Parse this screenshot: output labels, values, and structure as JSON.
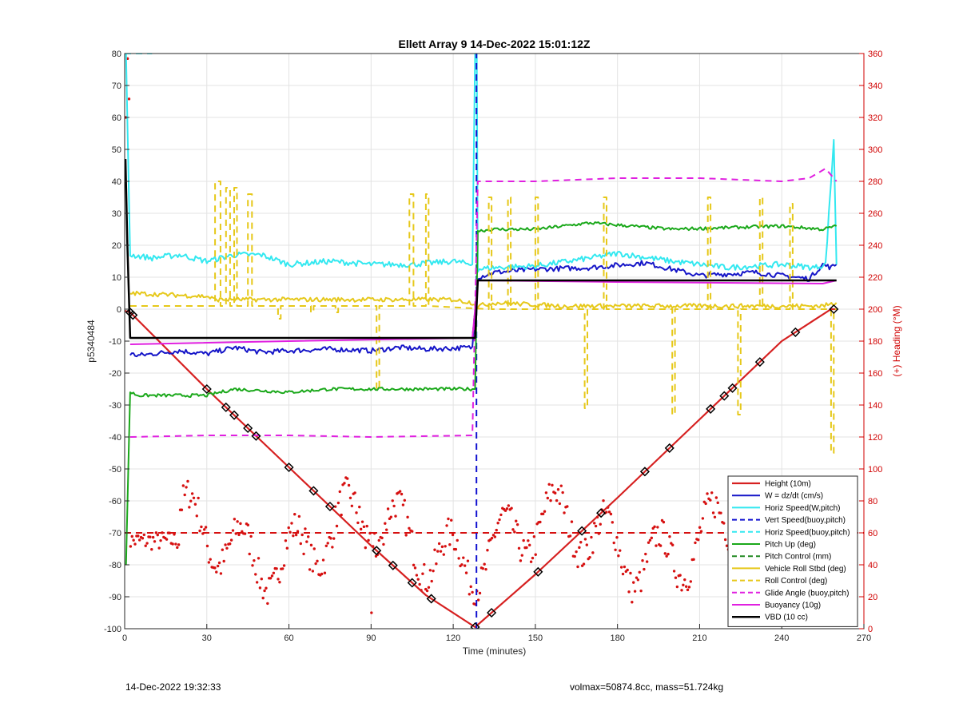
{
  "chart_data": {
    "type": "line",
    "title": "Ellett Array 9 14-Dec-2022 15:01:12Z",
    "xlabel": "Time (minutes)",
    "ylabel": "p5340484",
    "y2label": "(+) Heading (°M)",
    "xlim": [
      0,
      270
    ],
    "ylim": [
      -100,
      80
    ],
    "y2lim": [
      0,
      360
    ],
    "xticks": [
      0,
      30,
      60,
      90,
      120,
      150,
      180,
      210,
      240,
      270
    ],
    "yticks": [
      -100,
      -90,
      -80,
      -70,
      -60,
      -50,
      -40,
      -30,
      -20,
      -10,
      0,
      10,
      20,
      30,
      40,
      50,
      60,
      70,
      80
    ],
    "y2ticks": [
      0,
      20,
      40,
      60,
      80,
      100,
      120,
      140,
      160,
      180,
      200,
      220,
      240,
      260,
      280,
      300,
      320,
      340,
      360
    ],
    "grid": true,
    "legend_position": "bottom-right",
    "series": [
      {
        "name": "Height (10m)",
        "color": "#d62020",
        "style": "solid",
        "width": 2.2,
        "x": [
          0,
          2,
          30,
          60,
          90,
          110,
          128,
          150,
          180,
          210,
          240,
          258,
          260
        ],
        "y": [
          -0.5,
          -1,
          -25,
          -49.5,
          -74,
          -89.5,
          -99.5,
          -83,
          -59,
          -34.5,
          -10,
          0,
          0
        ]
      },
      {
        "name": "W = dz/dt (cm/s)",
        "color": "#1515c8",
        "style": "solid",
        "width": 2,
        "x": [
          2,
          5,
          20,
          30,
          40,
          50,
          60,
          75,
          90,
          100,
          110,
          127,
          129,
          135,
          150,
          170,
          190,
          210,
          230,
          250,
          255,
          258,
          260
        ],
        "y": [
          -14,
          -14.5,
          -13,
          -14,
          -12,
          -13.5,
          -13,
          -12.5,
          -13,
          -12,
          -12.5,
          -12,
          10,
          11.5,
          12.5,
          13,
          14.5,
          10.5,
          11.5,
          9.5,
          14,
          13,
          14
        ]
      },
      {
        "name": "Horiz Speed(W,pitch)",
        "color": "#33e8f0",
        "style": "solid",
        "width": 2,
        "x": [
          0.5,
          2,
          10,
          20,
          30,
          40,
          50,
          60,
          75,
          90,
          105,
          120,
          127,
          128,
          128.6,
          129,
          135,
          150,
          170,
          180,
          200,
          220,
          240,
          252,
          256,
          259,
          260
        ],
        "y": [
          80,
          17,
          16,
          17,
          15,
          17,
          17,
          14,
          15,
          14,
          14,
          15,
          14,
          80,
          80,
          12.5,
          13,
          13.5,
          16,
          17.5,
          15,
          13,
          14,
          13,
          14,
          53,
          14
        ]
      },
      {
        "name": "Vert Speed(buoy,pitch)",
        "color": "#1010d0",
        "style": "dashed",
        "width": 2,
        "x": [
          128.5,
          128.5
        ],
        "y": [
          -100,
          80
        ]
      },
      {
        "name": "Horiz Speed(buoy,pitch)",
        "color": "#33e8f0",
        "style": "dashed",
        "width": 2,
        "x": [
          0,
          10
        ],
        "y": [
          80,
          80
        ]
      },
      {
        "name": "Pitch Up (deg)",
        "color": "#1aa81a",
        "style": "solid",
        "width": 2,
        "x": [
          0.5,
          2,
          5,
          30,
          40,
          60,
          75,
          100,
          127,
          128,
          129,
          135,
          150,
          160,
          170,
          185,
          200,
          220,
          240,
          255,
          260
        ],
        "y": [
          -80,
          -26,
          -27,
          -27,
          -25,
          -26,
          -25,
          -25,
          -25,
          -25,
          24.5,
          25,
          25,
          26,
          27,
          26,
          25,
          25.5,
          26,
          25,
          26
        ]
      },
      {
        "name": "Pitch Control (mm)",
        "color": "#208820",
        "style": "dashed",
        "width": 2,
        "x": [
          2,
          127,
          129,
          260
        ],
        "y": [
          -9,
          -9,
          9,
          9
        ]
      },
      {
        "name": "Vehicle Roll Stbd (deg)",
        "color": "#e6c81a",
        "style": "solid",
        "width": 2,
        "x": [
          2,
          30,
          33,
          60,
          90,
          120,
          127,
          129,
          135,
          160,
          200,
          230,
          255,
          260
        ],
        "y": [
          5,
          4,
          3,
          3,
          3,
          3,
          2,
          1,
          2,
          1,
          1,
          1,
          1,
          2
        ]
      },
      {
        "name": "Roll Control (deg)",
        "color": "#e6c81a",
        "style": "dashed",
        "width": 2,
        "x": [
          2,
          128,
          129,
          260
        ],
        "y": [
          1,
          1,
          0,
          0
        ]
      },
      {
        "name": "Glide Angle (buoy,pitch)",
        "color": "#e020e0",
        "style": "dashed",
        "width": 2,
        "x": [
          2,
          30,
          60,
          90,
          127,
          129,
          150,
          180,
          210,
          240,
          250,
          256,
          260
        ],
        "y": [
          -40,
          -39.5,
          -39.5,
          -40,
          -39.5,
          40,
          40,
          41,
          41,
          40,
          41,
          44,
          40
        ]
      },
      {
        "name": "Buoyancy (10g)",
        "color": "#e020e0",
        "style": "solid",
        "width": 2,
        "x": [
          2,
          60,
          127,
          129,
          180,
          255,
          260
        ],
        "y": [
          -11,
          -10,
          -9,
          9,
          8.5,
          8,
          9
        ]
      },
      {
        "name": "VBD (10 cc)",
        "color": "#000000",
        "style": "solid",
        "width": 2.5,
        "x": [
          0.3,
          1,
          2,
          128,
          129,
          260
        ],
        "y": [
          47,
          20,
          -9,
          -9,
          9,
          9
        ]
      }
    ],
    "heading": {
      "name": "(+) Heading (°M)",
      "axis": "right",
      "color": "#d61010",
      "reference_value": 60,
      "approx_range": [
        0,
        360
      ]
    },
    "markers": {
      "description": "black diamond markers along Height trace",
      "x": [
        2,
        3,
        30,
        37,
        40,
        45,
        48,
        60,
        69,
        75,
        92,
        98,
        105,
        112,
        128,
        134,
        151,
        167,
        174,
        190,
        199,
        214,
        219,
        222,
        232,
        245,
        259
      ]
    }
  },
  "footer": {
    "left": "14-Dec-2022 19:32:33",
    "right": "volmax=50874.8cc, mass=51.724kg"
  }
}
